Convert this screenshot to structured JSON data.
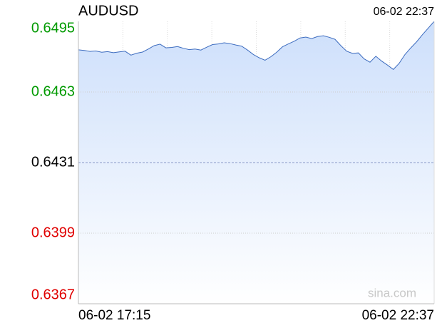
{
  "chart_data": {
    "type": "area-line",
    "title": "AUDUSD",
    "timestamp": "06-02 22:37",
    "watermark": "sina.com",
    "categories": [
      "06-02 17:15",
      null,
      null,
      null,
      null,
      null,
      null,
      null,
      null,
      null,
      null,
      null,
      null,
      null,
      null,
      null,
      null,
      null,
      null,
      null,
      null,
      null,
      null,
      null,
      null,
      null,
      null,
      null,
      null,
      null,
      null,
      null,
      null,
      null,
      null,
      null,
      null,
      null,
      null,
      null,
      null,
      null,
      null,
      null,
      null,
      null,
      null,
      null,
      null,
      null,
      null,
      null,
      null,
      null,
      null,
      null,
      null,
      null,
      null,
      null,
      null,
      "06-02 22:37"
    ],
    "values": [
      0.64821,
      0.64818,
      0.64814,
      0.64816,
      0.6481,
      0.64813,
      0.64808,
      0.64812,
      0.64815,
      0.64797,
      0.64806,
      0.64811,
      0.64825,
      0.6484,
      0.64847,
      0.6483,
      0.64832,
      0.64836,
      0.64828,
      0.64822,
      0.64825,
      0.6482,
      0.64833,
      0.64845,
      0.64848,
      0.64853,
      0.64849,
      0.64843,
      0.64838,
      0.6482,
      0.648,
      0.64785,
      0.64774,
      0.6479,
      0.6481,
      0.64835,
      0.64848,
      0.6486,
      0.64875,
      0.64879,
      0.64872,
      0.64881,
      0.64885,
      0.64878,
      0.64869,
      0.6484,
      0.64815,
      0.64805,
      0.64807,
      0.6478,
      0.64765,
      0.64792,
      0.6477,
      0.64752,
      0.64732,
      0.6476,
      0.648,
      0.6483,
      0.64858,
      0.6489,
      0.6492,
      0.6495
    ],
    "color": "#3d6cbf",
    "ylim": [
      0.6367,
      0.6495
    ],
    "yticks": [
      0.6367,
      0.6399,
      0.6431,
      0.6463,
      0.6495
    ],
    "ytick_colors": [
      "#e00000",
      "#e00000",
      "#000000",
      "#009a00",
      "#009a00"
    ],
    "grid": true
  }
}
